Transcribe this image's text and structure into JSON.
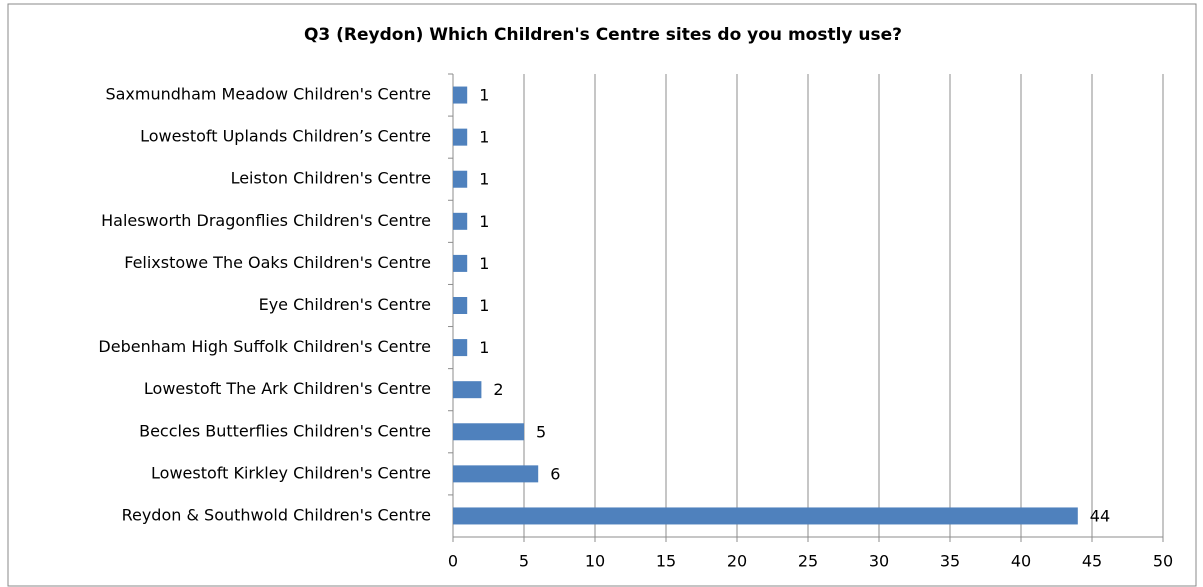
{
  "chart_data": {
    "type": "bar",
    "orientation": "horizontal",
    "title": "Q3 (Reydon) Which Children's Centre sites do you mostly use?",
    "categories": [
      "Saxmundham Meadow Children's Centre",
      "Lowestoft Uplands Children’s Centre",
      "Leiston Children's Centre",
      "Halesworth Dragonflies Children's Centre",
      "Felixstowe The Oaks Children's Centre",
      "Eye Children's Centre",
      "Debenham High Suffolk Children's Centre",
      "Lowestoft The Ark Children's Centre",
      "Beccles Butterflies Children's Centre",
      "Lowestoft Kirkley Children's Centre",
      "Reydon & Southwold Children's Centre"
    ],
    "values": [
      1,
      1,
      1,
      1,
      1,
      1,
      1,
      2,
      5,
      6,
      44
    ],
    "color": "#4f81bd",
    "xlim": [
      0,
      50
    ],
    "xticks": [
      0,
      5,
      10,
      15,
      20,
      25,
      30,
      35,
      40,
      45,
      50
    ],
    "grid": true
  }
}
